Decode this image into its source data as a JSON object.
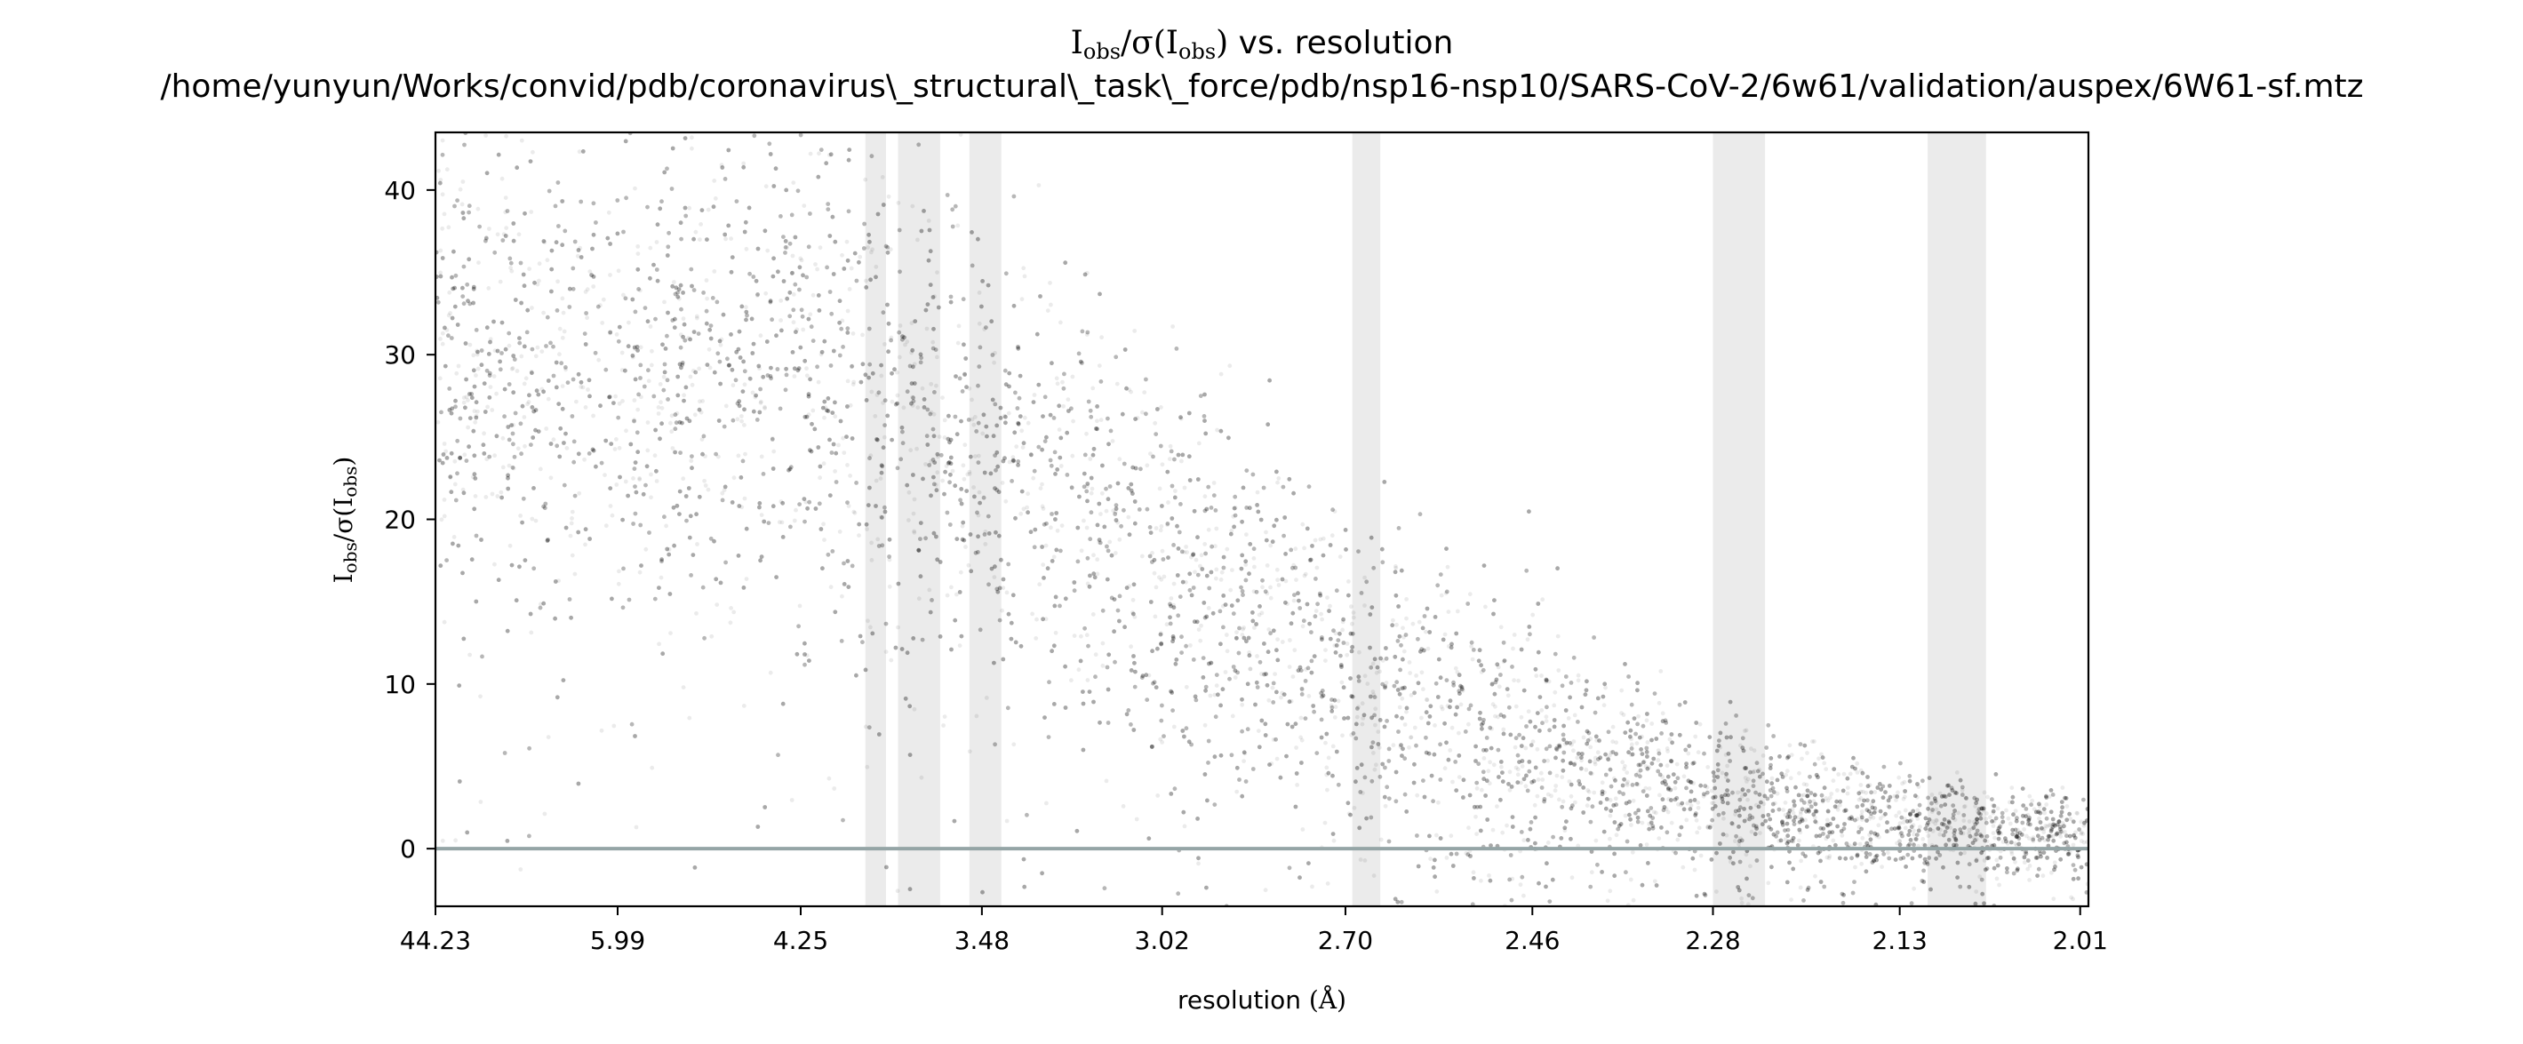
{
  "chart_data": {
    "type": "scatter",
    "title": {
      "symbol_main": "I",
      "symbol_sub": "obs",
      "sigma_open": "/σ(",
      "sigma_symbol": "I",
      "sigma_sub": "obs",
      "sigma_close": ")",
      "suffix": " vs. resolution"
    },
    "subtitle": "/home/yunyun/Works/convid/pdb/coronavirus\\_structural\\_task\\_force/pdb/nsp16-nsp10/SARS-CoV-2/6w61/validation/auspex/6W61-sf.mtz",
    "xlabel": {
      "text": "resolution ",
      "unit": "(Å)"
    },
    "ylabel": {
      "symbol_main": "I",
      "symbol_sub": "obs",
      "sigma_open": "/σ(",
      "sigma_symbol": "I",
      "sigma_sub": "obs",
      "sigma_close": ")"
    },
    "x_axis": {
      "scale": "inverse-square",
      "tick_values": [
        44.23,
        5.99,
        4.25,
        3.48,
        3.02,
        2.7,
        2.46,
        2.28,
        2.13,
        2.01
      ],
      "tick_labels": [
        "44.23",
        "5.99",
        "4.25",
        "3.48",
        "3.02",
        "2.70",
        "2.46",
        "2.28",
        "2.13",
        "2.01"
      ],
      "range": [
        44.23,
        2.005
      ]
    },
    "y_axis": {
      "tick_values": [
        0,
        10,
        20,
        30,
        40
      ],
      "tick_labels": [
        "0",
        "10",
        "20",
        "30",
        "40"
      ],
      "range": [
        -3.5,
        43.5
      ]
    },
    "reference_line": {
      "y": 0,
      "color": "#95a5a6"
    },
    "ice_ring_bands": [
      [
        3.92,
        3.83
      ],
      [
        3.78,
        3.62
      ],
      [
        3.52,
        3.42
      ],
      [
        2.69,
        2.65
      ],
      [
        2.28,
        2.235
      ],
      [
        2.11,
        2.07
      ]
    ],
    "colors": {
      "points": "#000000",
      "bands": "#e2e2e2",
      "frame": "#000000"
    },
    "density_profile": [
      {
        "resolution": 44.23,
        "mean": 30,
        "spread": 7
      },
      {
        "resolution": 5.99,
        "mean": 28,
        "spread": 7
      },
      {
        "resolution": 4.25,
        "mean": 30,
        "spread": 8
      },
      {
        "resolution": 3.48,
        "mean": 24,
        "spread": 7
      },
      {
        "resolution": 3.02,
        "mean": 17,
        "spread": 6
      },
      {
        "resolution": 2.7,
        "mean": 10,
        "spread": 5
      },
      {
        "resolution": 2.46,
        "mean": 6,
        "spread": 4
      },
      {
        "resolution": 2.28,
        "mean": 3,
        "spread": 2.5
      },
      {
        "resolution": 2.13,
        "mean": 1.5,
        "spread": 1.5
      },
      {
        "resolution": 2.01,
        "mean": 0.7,
        "spread": 1.2
      }
    ]
  }
}
